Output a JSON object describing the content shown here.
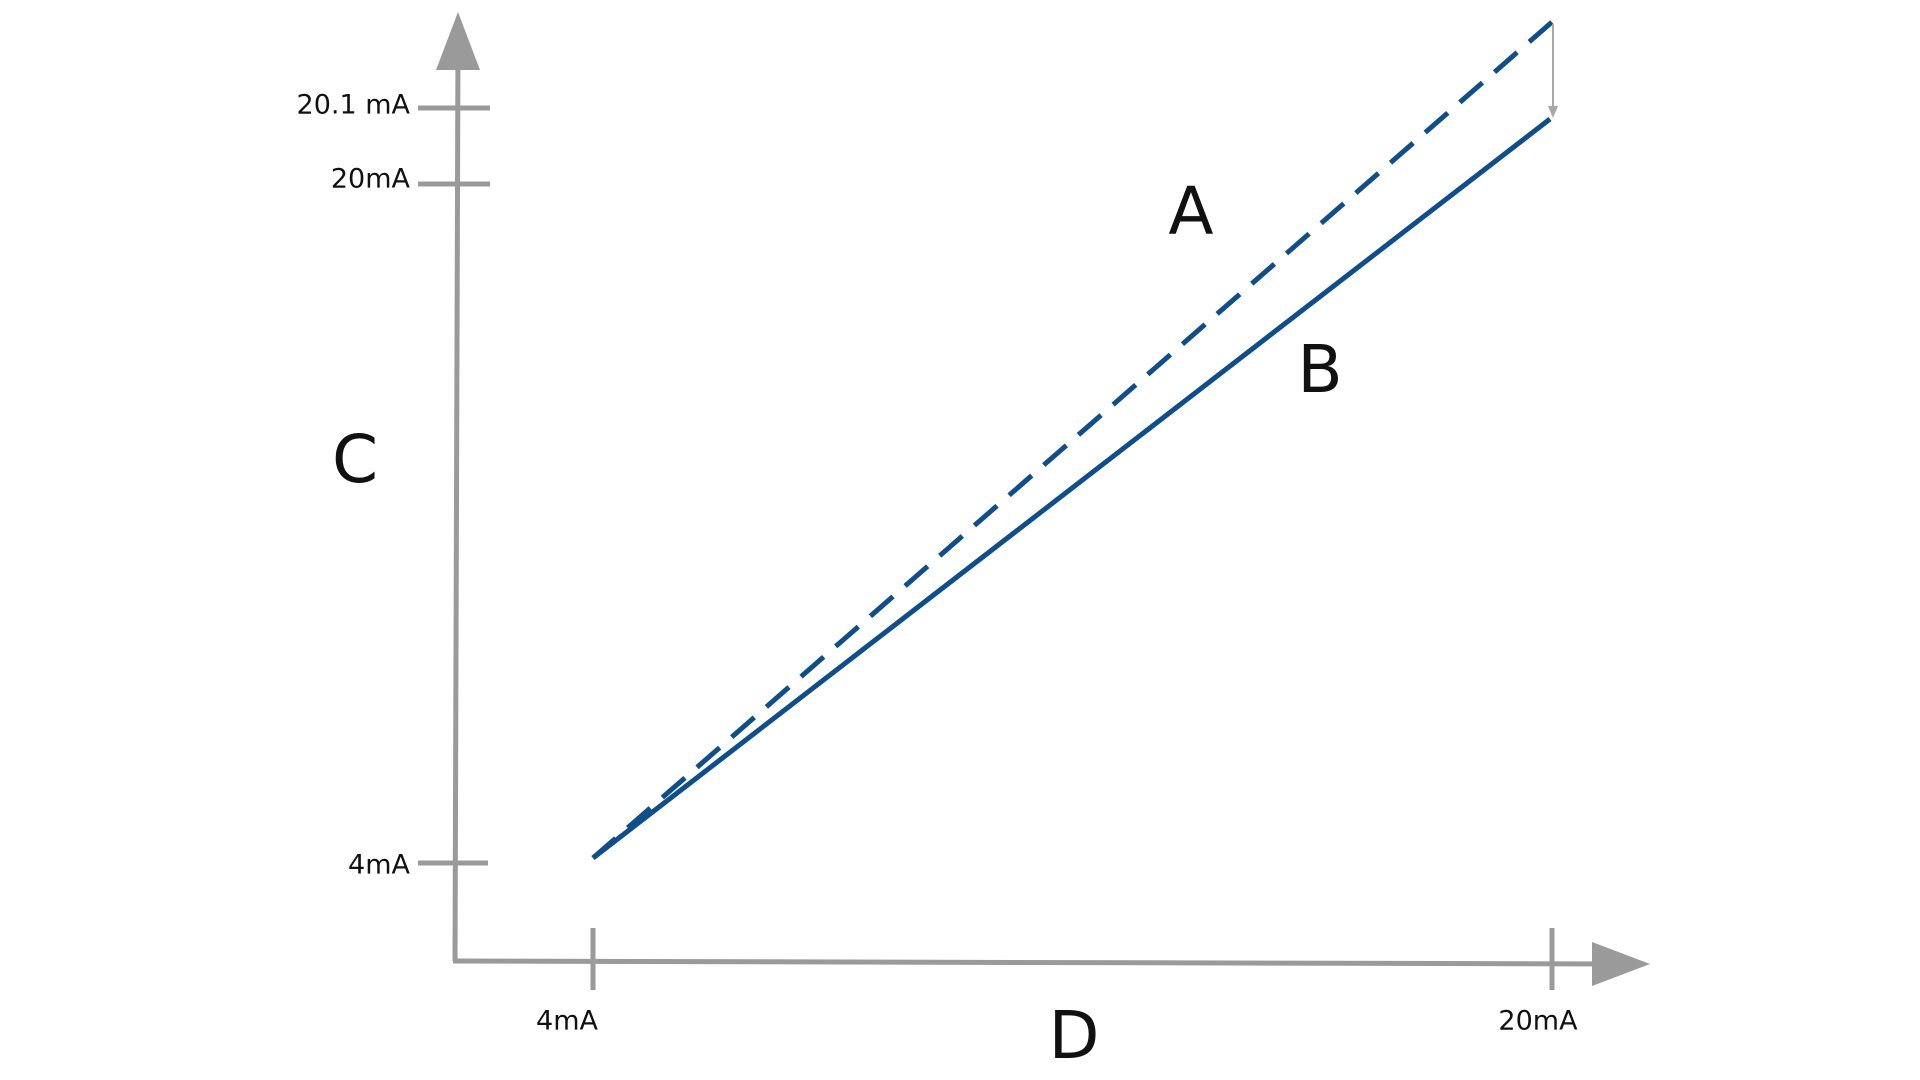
{
  "y_axis": {
    "label": "C",
    "ticks": [
      "20.1 mA",
      "20mA",
      "4mA"
    ]
  },
  "x_axis": {
    "label": "D",
    "ticks": [
      "4mA",
      "20mA"
    ]
  },
  "lines": [
    {
      "label": "A"
    },
    {
      "label": "B"
    }
  ]
}
